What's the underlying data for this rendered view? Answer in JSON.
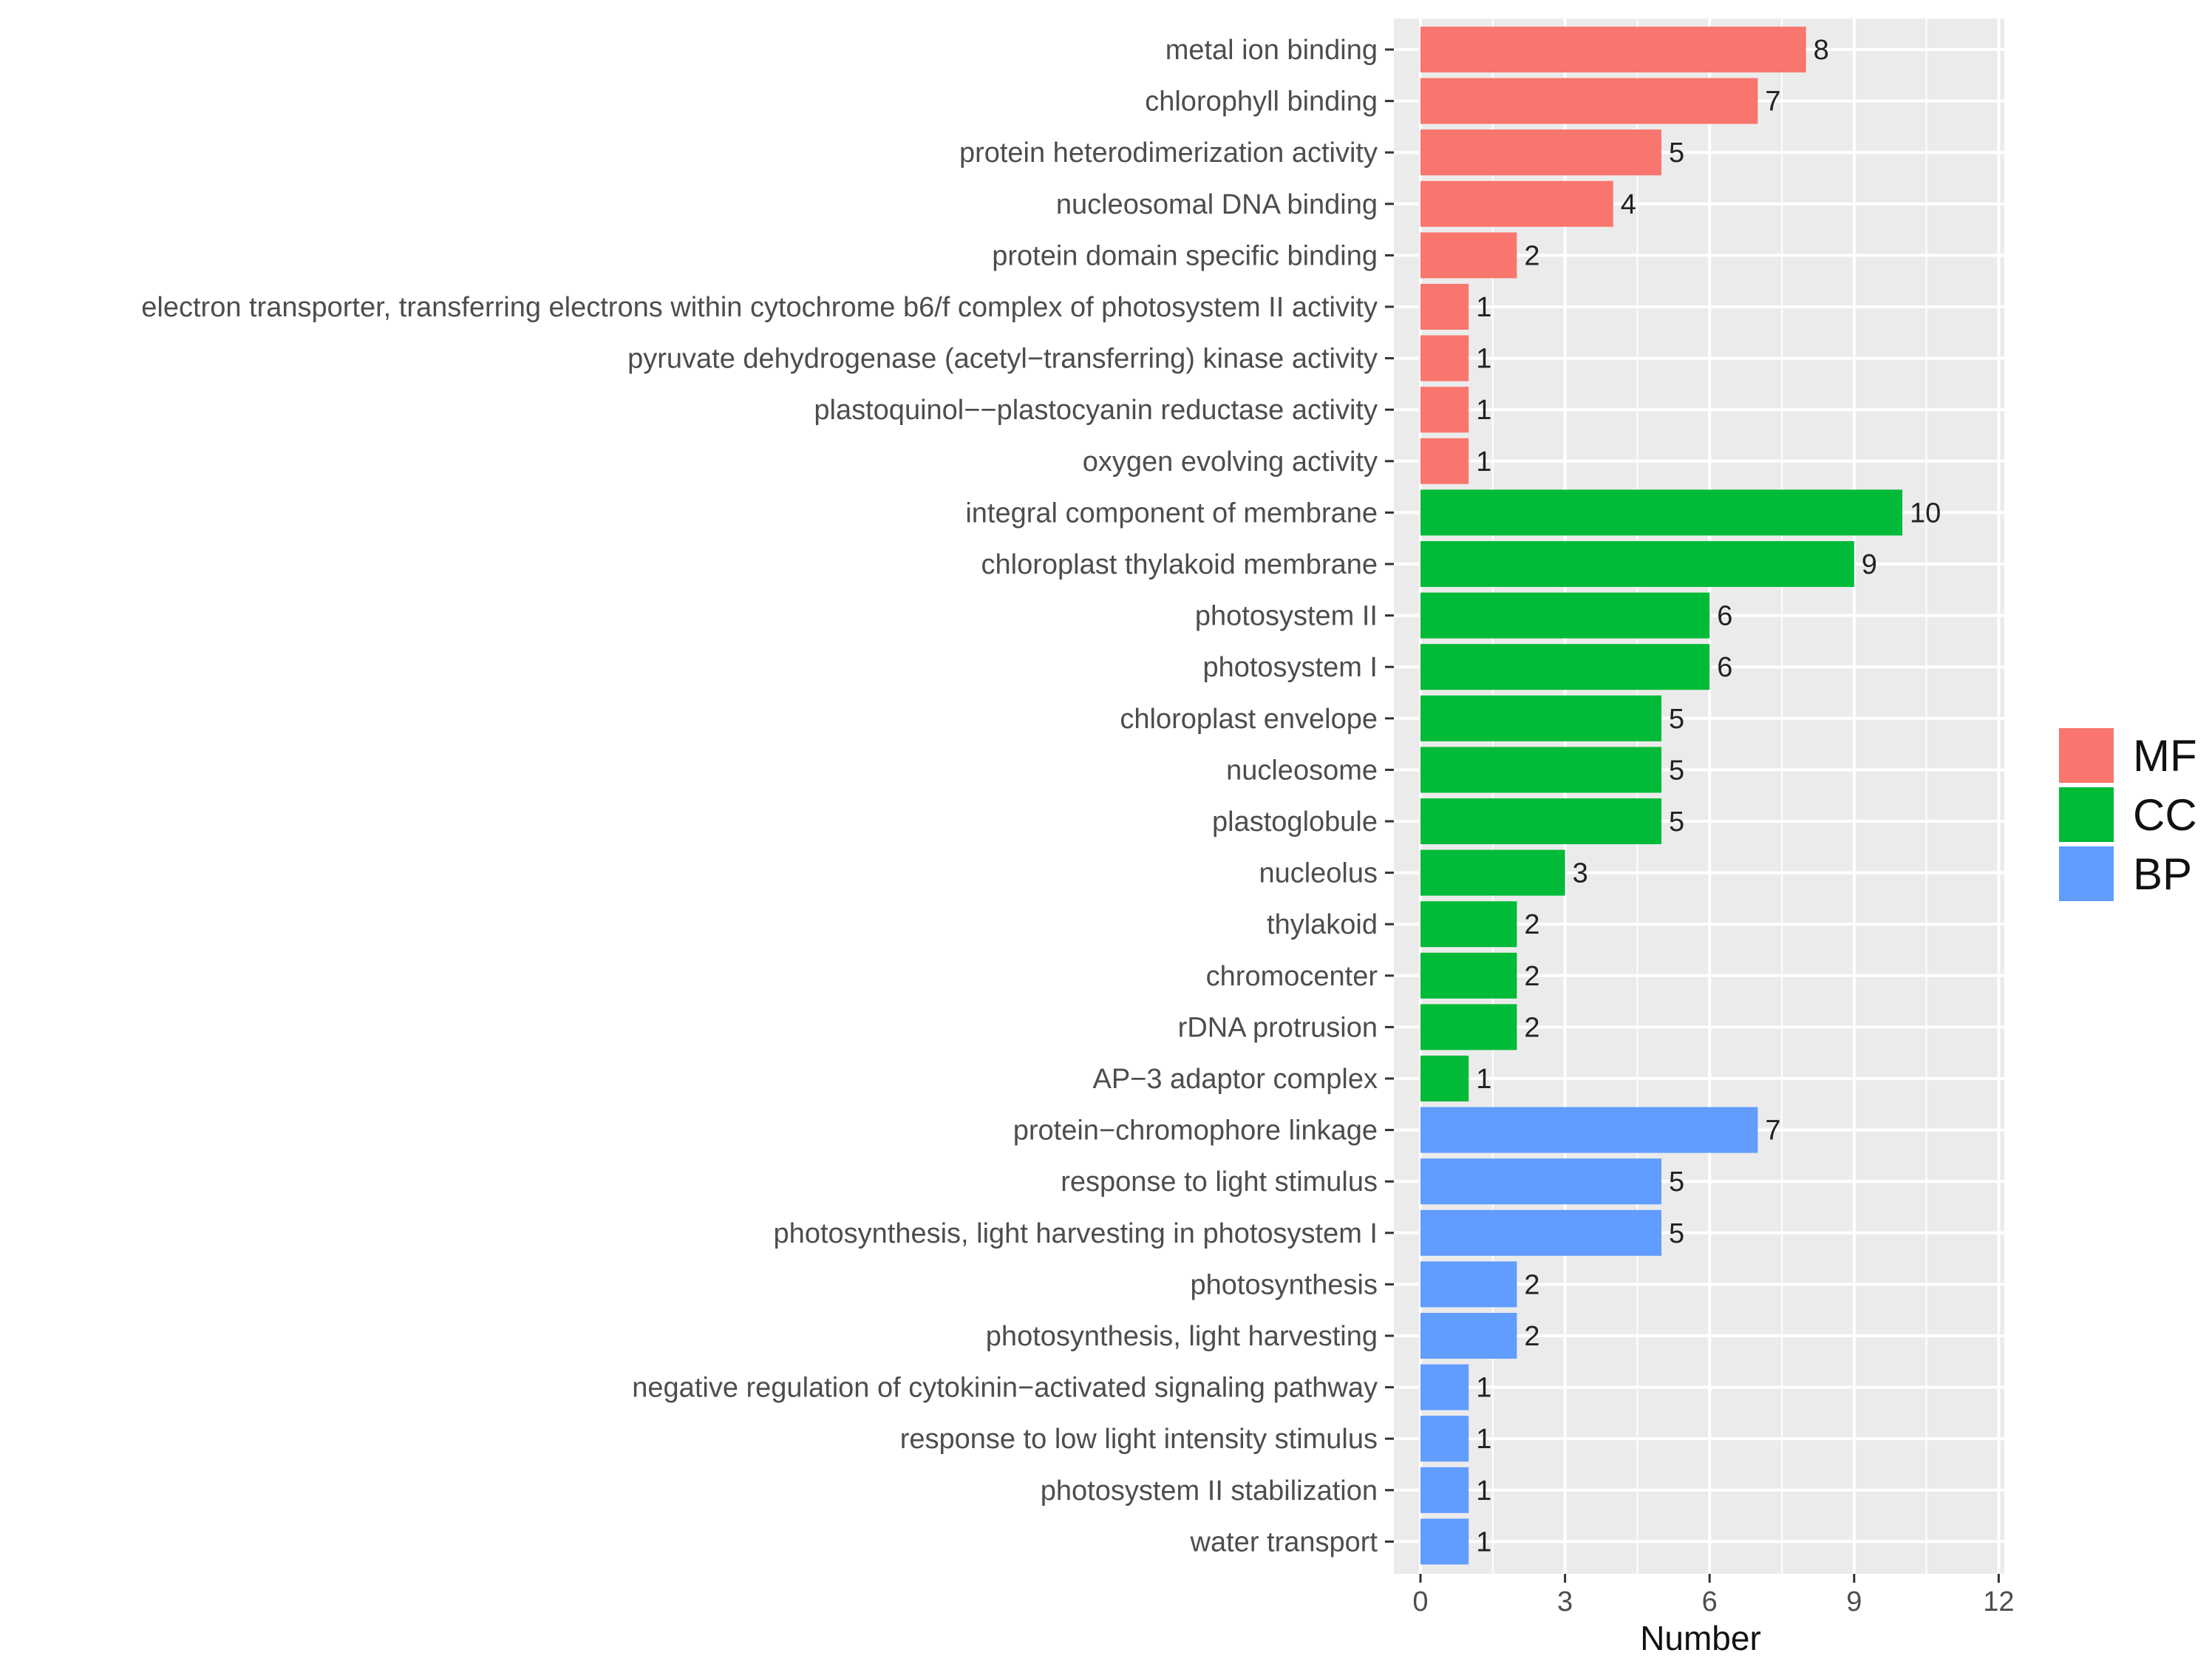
{
  "chart_data": {
    "type": "bar",
    "orientation": "horizontal",
    "title": "",
    "xlabel": "Number",
    "ylabel": "",
    "xlim": [
      0,
      12
    ],
    "x_ticks": [
      0,
      3,
      6,
      9,
      12
    ],
    "grid": true,
    "legend_position": "right",
    "legend": [
      {
        "name": "MF",
        "color": "#F8766D"
      },
      {
        "name": "CC",
        "color": "#00BA38"
      },
      {
        "name": "BP",
        "color": "#619CFF"
      }
    ],
    "bars": [
      {
        "label": "metal ion binding",
        "value": 8,
        "group": "MF"
      },
      {
        "label": "chlorophyll binding",
        "value": 7,
        "group": "MF"
      },
      {
        "label": "protein heterodimerization activity",
        "value": 5,
        "group": "MF"
      },
      {
        "label": "nucleosomal DNA binding",
        "value": 4,
        "group": "MF"
      },
      {
        "label": "protein domain specific binding",
        "value": 2,
        "group": "MF"
      },
      {
        "label": "electron transporter, transferring electrons within cytochrome b6/f complex of photosystem II activity",
        "value": 1,
        "group": "MF"
      },
      {
        "label": "pyruvate dehydrogenase (acetyl−transferring) kinase activity",
        "value": 1,
        "group": "MF"
      },
      {
        "label": "plastoquinol−−plastocyanin reductase activity",
        "value": 1,
        "group": "MF"
      },
      {
        "label": "oxygen evolving activity",
        "value": 1,
        "group": "MF"
      },
      {
        "label": "integral component of membrane",
        "value": 10,
        "group": "CC"
      },
      {
        "label": "chloroplast thylakoid membrane",
        "value": 9,
        "group": "CC"
      },
      {
        "label": "photosystem II",
        "value": 6,
        "group": "CC"
      },
      {
        "label": "photosystem I",
        "value": 6,
        "group": "CC"
      },
      {
        "label": "chloroplast envelope",
        "value": 5,
        "group": "CC"
      },
      {
        "label": "nucleosome",
        "value": 5,
        "group": "CC"
      },
      {
        "label": "plastoglobule",
        "value": 5,
        "group": "CC"
      },
      {
        "label": "nucleolus",
        "value": 3,
        "group": "CC"
      },
      {
        "label": "thylakoid",
        "value": 2,
        "group": "CC"
      },
      {
        "label": "chromocenter",
        "value": 2,
        "group": "CC"
      },
      {
        "label": "rDNA protrusion",
        "value": 2,
        "group": "CC"
      },
      {
        "label": "AP−3 adaptor complex",
        "value": 1,
        "group": "CC"
      },
      {
        "label": "protein−chromophore linkage",
        "value": 7,
        "group": "BP"
      },
      {
        "label": "response to light stimulus",
        "value": 5,
        "group": "BP"
      },
      {
        "label": "photosynthesis, light harvesting in photosystem I",
        "value": 5,
        "group": "BP"
      },
      {
        "label": "photosynthesis",
        "value": 2,
        "group": "BP"
      },
      {
        "label": "photosynthesis, light harvesting",
        "value": 2,
        "group": "BP"
      },
      {
        "label": "negative regulation of cytokinin−activated signaling pathway",
        "value": 1,
        "group": "BP"
      },
      {
        "label": "response to low light intensity stimulus",
        "value": 1,
        "group": "BP"
      },
      {
        "label": "photosystem II stabilization",
        "value": 1,
        "group": "BP"
      },
      {
        "label": "water transport",
        "value": 1,
        "group": "BP"
      }
    ]
  }
}
